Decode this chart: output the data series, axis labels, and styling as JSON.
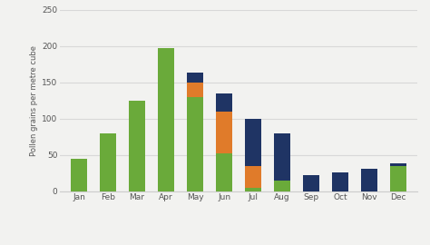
{
  "months": [
    "Jan",
    "Feb",
    "Mar",
    "Apr",
    "May",
    "Jun",
    "Jul",
    "Aug",
    "Sep",
    "Oct",
    "Nov",
    "Dec"
  ],
  "tree": [
    44,
    80,
    125,
    197,
    130,
    52,
    5,
    15,
    0,
    0,
    0,
    35
  ],
  "grass": [
    0,
    0,
    0,
    0,
    20,
    58,
    30,
    0,
    0,
    0,
    0,
    0
  ],
  "weed": [
    0,
    0,
    0,
    0,
    13,
    25,
    65,
    65,
    22,
    26,
    31,
    3
  ],
  "tree_color": "#6aaa3a",
  "grass_color": "#e07b2a",
  "weed_color": "#1f3464",
  "ylabel": "Pollen grains per metre cube",
  "ylim": [
    0,
    250
  ],
  "yticks": [
    0,
    50,
    100,
    150,
    200,
    250
  ],
  "bg_color": "#f2f2f0",
  "grid_color": "#d8d8d8",
  "bar_width": 0.55
}
